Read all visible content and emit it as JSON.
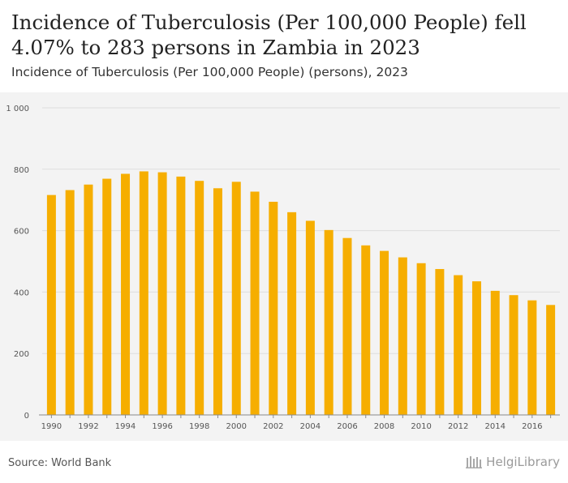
{
  "header": {
    "title": "Incidence of Tuberculosis (Per 100,000 People) fell 4.07% to 283 persons in Zambia in 2023",
    "subtitle": "Incidence of Tuberculosis (Per 100,000 People) (persons), 2023"
  },
  "footer": {
    "source": "Source: World Bank",
    "logo_text": "HelgiLibrary"
  },
  "colors": {
    "bar": "#f6ae00",
    "grid": "#dedede",
    "plot_bg": "#f3f3f3",
    "tick_text": "#555555"
  },
  "chart_data": {
    "type": "bar",
    "title": "",
    "xlabel": "",
    "ylabel": "",
    "ylim": [
      0,
      1000
    ],
    "yticks": [
      0,
      200,
      400,
      600,
      800,
      1000
    ],
    "ytick_labels": [
      "0",
      "200",
      "400",
      "600",
      "800",
      "1 000"
    ],
    "xtick_labels": [
      "1990",
      "1992",
      "1994",
      "1996",
      "1998",
      "2000",
      "2002",
      "2004",
      "2006",
      "2008",
      "2010",
      "2012",
      "2014",
      "2016"
    ],
    "grid": true,
    "legend": "none",
    "categories": [
      "1990",
      "1991",
      "1992",
      "1993",
      "1994",
      "1995",
      "1996",
      "1997",
      "1998",
      "1999",
      "2000",
      "2001",
      "2002",
      "2003",
      "2004",
      "2005",
      "2006",
      "2007",
      "2008",
      "2009",
      "2010",
      "2011",
      "2012",
      "2013",
      "2014",
      "2015",
      "2016",
      "2017"
    ],
    "values": [
      716,
      732,
      750,
      769,
      785,
      793,
      790,
      776,
      762,
      738,
      759,
      727,
      694,
      660,
      632,
      602,
      576,
      552,
      534,
      513,
      494,
      475,
      455,
      435,
      404,
      390,
      373,
      358
    ]
  }
}
